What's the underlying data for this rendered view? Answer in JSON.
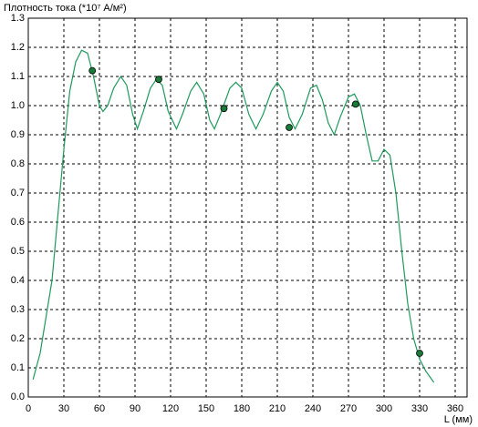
{
  "chart_data": {
    "type": "line",
    "title": "Плотность тока (*10⁷ А/м²)",
    "xlabel": "L (мм)",
    "xlim": [
      0,
      370
    ],
    "ylim": [
      0,
      1.3
    ],
    "xticks": [
      0,
      30,
      60,
      90,
      120,
      150,
      180,
      210,
      240,
      270,
      300,
      330,
      360
    ],
    "yticks": [
      {
        "value": 0,
        "label": "0.0"
      },
      {
        "value": 0.1,
        "label": "0.1"
      },
      {
        "value": 0.2,
        "label": "0.2"
      },
      {
        "value": 0.3,
        "label": "0.3"
      },
      {
        "value": 0.4,
        "label": "0.4"
      },
      {
        "value": 0.5,
        "label": "0.5"
      },
      {
        "value": 0.6,
        "label": "0.6"
      },
      {
        "value": 0.7,
        "label": "0.7"
      },
      {
        "value": 0.8,
        "label": "0.8"
      },
      {
        "value": 0.9,
        "label": "0.9"
      },
      {
        "value": 1,
        "label": "1.0"
      },
      {
        "value": 1.1,
        "label": "1.1"
      },
      {
        "value": 1.2,
        "label": "1.2"
      },
      {
        "value": 1.3,
        "label": "1.3"
      }
    ],
    "grid": true,
    "series": [
      {
        "color": "#1f9a5c",
        "x": [
          4,
          10,
          20,
          30,
          35,
          40,
          45,
          50,
          55,
          60,
          63,
          67,
          72,
          78,
          83,
          88,
          92,
          97,
          103,
          108,
          113,
          118,
          125,
          130,
          137,
          142,
          148,
          153,
          157,
          162,
          170,
          175,
          180,
          186,
          192,
          198,
          205,
          210,
          215,
          220,
          225,
          231,
          238,
          243,
          248,
          253,
          258,
          263,
          270,
          275,
          280,
          285,
          290,
          295,
          300,
          305,
          310,
          315,
          320,
          325,
          330,
          335,
          342
        ],
        "values": [
          0.06,
          0.15,
          0.4,
          0.85,
          1.05,
          1.15,
          1.19,
          1.18,
          1.1,
          1.0,
          0.98,
          1.0,
          1.06,
          1.1,
          1.07,
          0.97,
          0.92,
          0.98,
          1.06,
          1.09,
          1.07,
          0.98,
          0.92,
          0.97,
          1.05,
          1.08,
          1.04,
          0.95,
          0.92,
          0.97,
          1.06,
          1.08,
          1.06,
          0.97,
          0.92,
          0.97,
          1.05,
          1.08,
          1.05,
          0.96,
          0.92,
          0.97,
          1.06,
          1.07,
          1.02,
          0.94,
          0.9,
          0.96,
          1.03,
          1.04,
          1.0,
          0.9,
          0.81,
          0.81,
          0.85,
          0.83,
          0.7,
          0.5,
          0.32,
          0.2,
          0.13,
          0.09,
          0.05
        ]
      },
      {
        "type": "scatter",
        "color": "#1a7a3a",
        "x": [
          54,
          110,
          165,
          220,
          276,
          330
        ],
        "values": [
          1.12,
          1.09,
          0.99,
          0.925,
          1.005,
          0.15
        ]
      }
    ]
  }
}
